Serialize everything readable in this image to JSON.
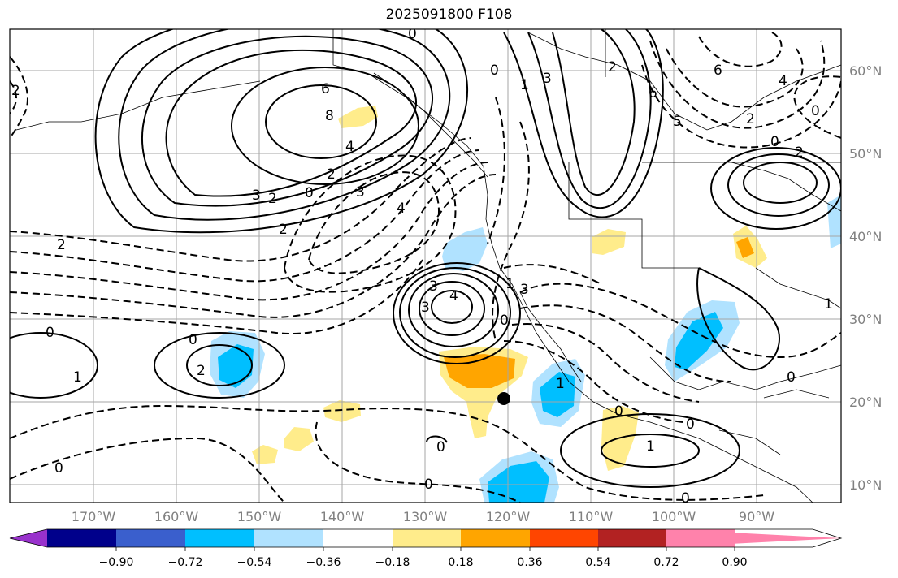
{
  "title": "2025091800 F108",
  "latitude_labels": [
    "60°N",
    "50°N",
    "40°N",
    "30°N",
    "20°N",
    "10°N"
  ],
  "longitude_labels": [
    "170°W",
    "160°W",
    "150°W",
    "140°W",
    "130°W",
    "120°W",
    "110°W",
    "100°W",
    "90°W"
  ],
  "colorbar": {
    "tick_labels": [
      "−0.90",
      "−0.72",
      "−0.54",
      "−0.36",
      "−0.18",
      "0.18",
      "0.36",
      "0.54",
      "0.72",
      "0.90"
    ],
    "colors": [
      "#9932CC",
      "#00008B",
      "#3A5FCD",
      "#00BFFF",
      "#B0E2FF",
      "#FFFFFF",
      "#FFEC8B",
      "#FFA500",
      "#FF4500",
      "#B22222",
      "#FF82AB"
    ]
  },
  "contour_labels": [
    "0",
    "6",
    "8",
    "4",
    "2",
    "3",
    "0",
    "2",
    "3",
    "4",
    "0",
    "2",
    "6",
    "0",
    "1",
    "3",
    "2",
    "5",
    "6",
    "4",
    "0",
    "2",
    "2",
    "2",
    "0",
    "2",
    "3",
    "4",
    "3",
    "3",
    "0",
    "1",
    "0",
    "1",
    "2",
    "0",
    "1",
    "1",
    "0",
    "0",
    "0",
    "1",
    "0",
    "0",
    "0"
  ],
  "marker": {
    "type": "point",
    "lon": -120.0,
    "lat": 20.5
  }
}
